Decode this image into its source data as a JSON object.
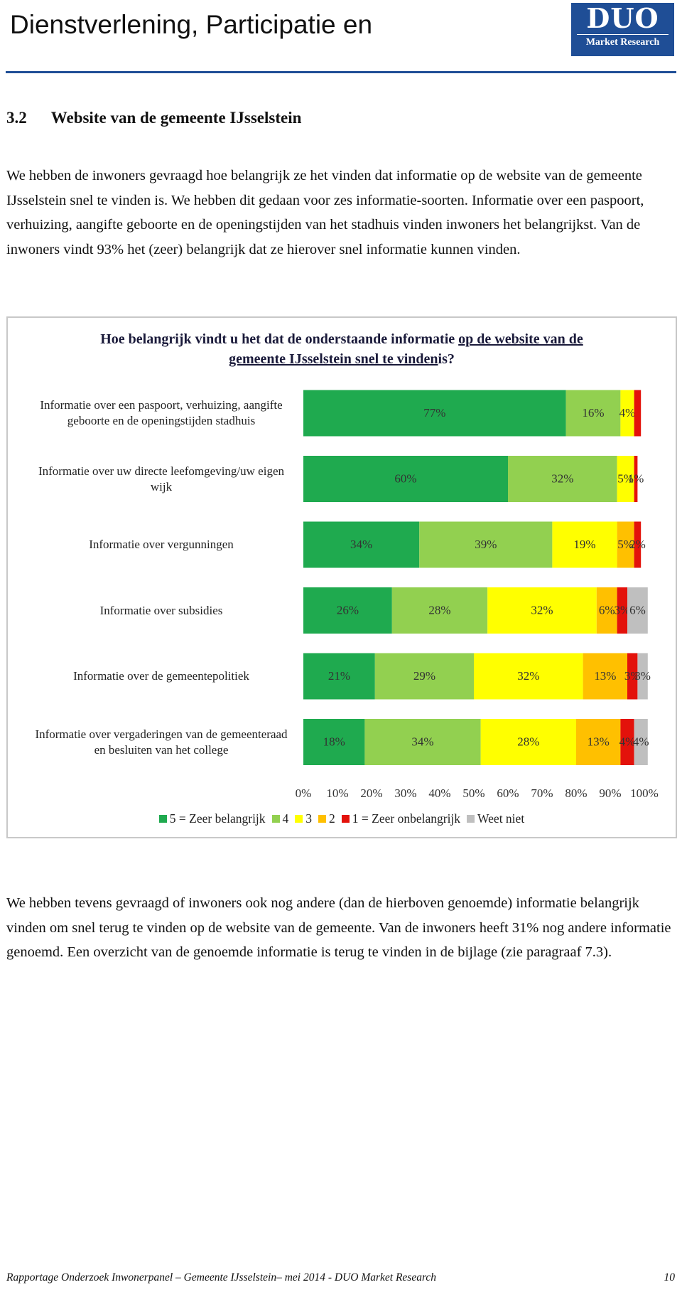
{
  "header": {
    "title": "Dienstverlening, Participatie en",
    "logo": "DUO",
    "logo_subtitle": "Market Research"
  },
  "section": {
    "number": "3.2",
    "title": "Website van de gemeente IJsselstein"
  },
  "paragraphs": [
    "We hebben de inwoners gevraagd hoe belangrijk ze het vinden dat informatie op de website van de gemeente IJsselstein snel te vinden is. We hebben dit gedaan voor zes informatie-soorten. Informatie over een paspoort, verhuizing, aangifte geboorte en de openingstijden van het stadhuis vinden inwoners het belangrijkst. Van de inwoners vindt 93% het (zeer) belangrijk dat ze hierover snel informatie kunnen vinden.",
    "We hebben tevens gevraagd of inwoners ook nog andere (dan de hierboven genoemde) informatie belangrijk vinden om snel terug te vinden op de website van de gemeente. Van de inwoners heeft 31% nog andere informatie genoemd. Een overzicht van de genoemde informatie is terug te vinden in de bijlage (zie paragraaf 7.3)."
  ],
  "chart_data": {
    "type": "stacked-barh",
    "title": "Hoe belangrijk vindt u het dat de onderstaande informatie",
    "title_underlined": "op de website van de gemeente IJsselstein snel te vinden",
    "title_end": "is?",
    "categories": [
      "Informatie over een paspoort, verhuizing, aangifte geboorte en de openingstijden stadhuis",
      "Informatie over uw directe leefomgeving/uw eigen wijk",
      "Informatie over vergunningen",
      "Informatie over subsidies",
      "Informatie over de gemeentepolitiek",
      "Informatie over vergaderingen van de gemeenteraad en besluiten van het college"
    ],
    "series": [
      {
        "name": "5 = Zeer belangrijk",
        "color": "#1faa4f",
        "values": [
          77,
          60,
          34,
          26,
          21,
          18
        ],
        "value_labels": [
          "77%",
          "60%",
          "34%",
          "26%",
          "21%",
          "18%"
        ]
      },
      {
        "name": "4",
        "color": "#92d050",
        "values": [
          16,
          32,
          39,
          28,
          29,
          34
        ],
        "value_labels": [
          "16%",
          "32%",
          "39%",
          "28%",
          "29%",
          "34%"
        ]
      },
      {
        "name": "3",
        "color": "#ffff00",
        "values": [
          4,
          5,
          19,
          32,
          32,
          28
        ],
        "value_labels": [
          "4%",
          "5%",
          "19%",
          "32%",
          "32%",
          "28%"
        ]
      },
      {
        "name": "2",
        "color": "#ffc000",
        "values": [
          0,
          0,
          5,
          6,
          13,
          13
        ],
        "value_labels": [
          null,
          null,
          "5%",
          "6%",
          "13%",
          "13%"
        ]
      },
      {
        "name": "1 = Zeer onbelangrijk",
        "color": "#e3120b",
        "values": [
          2,
          1,
          2,
          3,
          3,
          4
        ],
        "value_labels": [
          null,
          "1%",
          "2%",
          "3%",
          "3%",
          "4%"
        ]
      },
      {
        "name": "Weet niet",
        "color": "#bfbfbf",
        "values": [
          0,
          0,
          0,
          6,
          3,
          4
        ],
        "value_labels": [
          null,
          null,
          null,
          "6%",
          "3%",
          "4%"
        ]
      }
    ],
    "xlim": [
      0,
      100
    ],
    "xticks": [
      {
        "value": 0,
        "label": "0%"
      },
      {
        "value": 10,
        "label": "10%"
      },
      {
        "value": 20,
        "label": "20%"
      },
      {
        "value": 30,
        "label": "30%"
      },
      {
        "value": 40,
        "label": "40%"
      },
      {
        "value": 50,
        "label": "50%"
      },
      {
        "value": 60,
        "label": "60%"
      },
      {
        "value": 70,
        "label": "70%"
      },
      {
        "value": 80,
        "label": "80%"
      },
      {
        "value": 90,
        "label": "90%"
      },
      {
        "value": 100,
        "label": "100%"
      }
    ],
    "legend": "bottom"
  },
  "footer": {
    "text": "Rapportage Onderzoek Inwonerpanel – Gemeente IJsselstein– mei 2014 - DUO Market Research",
    "page": "10"
  }
}
